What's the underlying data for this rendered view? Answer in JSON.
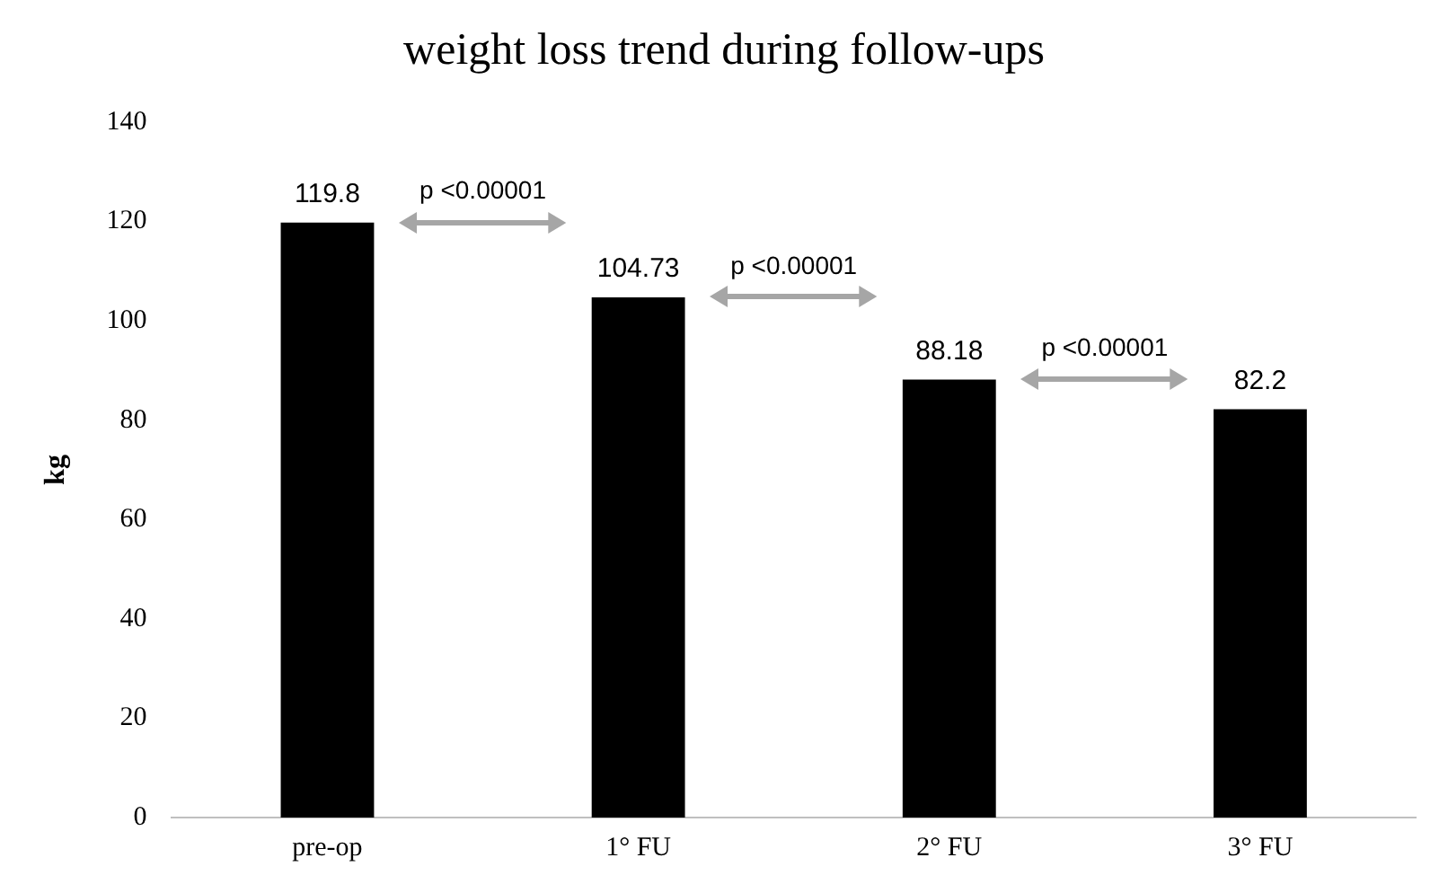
{
  "chart_data": {
    "type": "bar",
    "title": "weight loss trend during follow-ups",
    "ylabel": "kg",
    "categories": [
      "pre-op",
      "1° FU",
      "2° FU",
      "3° FU"
    ],
    "values": [
      119.8,
      104.73,
      88.18,
      82.2
    ],
    "color": "#000000",
    "ylim": [
      0,
      140
    ],
    "yticks": [
      0,
      20,
      40,
      60,
      80,
      100,
      120,
      140
    ],
    "grid": false,
    "legend": false,
    "data_labels": true,
    "annotations": [
      "p <0.00001",
      "p <0.00001",
      "p <0.00001"
    ]
  }
}
